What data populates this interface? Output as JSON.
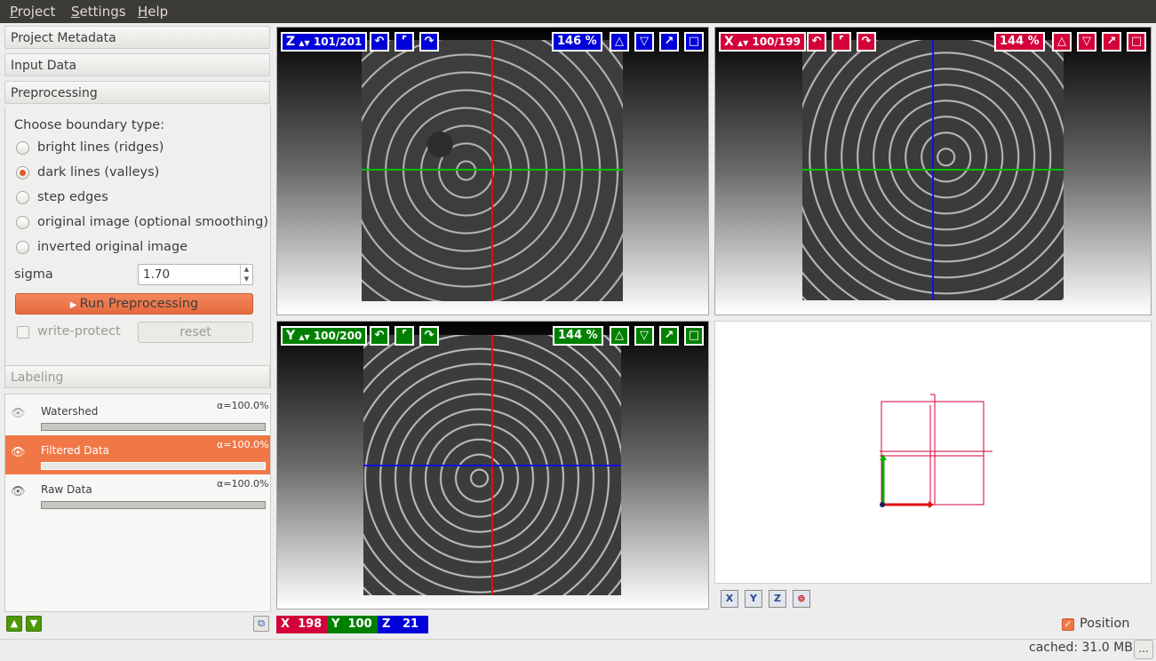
{
  "menu": {
    "items": [
      {
        "label": "Project",
        "accel": "P",
        "rest": "roject"
      },
      {
        "label": "Settings",
        "accel": "S",
        "rest": "ettings"
      },
      {
        "label": "Help",
        "accel": "H",
        "rest": "elp"
      }
    ]
  },
  "sections": {
    "project_metadata": "Project Metadata",
    "input_data": "Input Data",
    "preprocessing": "Preprocessing",
    "labeling": "Labeling"
  },
  "preprocessing": {
    "boundary_prompt": "Choose boundary type:",
    "options": [
      {
        "label": "bright lines (ridges)",
        "checked": false
      },
      {
        "label": "dark lines (valleys)",
        "checked": true
      },
      {
        "label": "step edges",
        "checked": false
      },
      {
        "label": "original image (optional smoothing)",
        "checked": false
      },
      {
        "label": "inverted original image",
        "checked": false
      }
    ],
    "sigma_label": "sigma",
    "sigma_value": "1.70",
    "run_label": "Run Preprocessing",
    "write_protect_label": "write-protect",
    "reset_label": "reset"
  },
  "layers": [
    {
      "name": "Watershed",
      "alpha": "α=100.0%",
      "selected": false
    },
    {
      "name": "Filtered Data",
      "alpha": "α=100.0%",
      "selected": true
    },
    {
      "name": "Raw Data",
      "alpha": "α=100.0%",
      "selected": false
    }
  ],
  "viewers": {
    "z": {
      "axis": "Z",
      "slice": "101/201",
      "zoom": "146 %"
    },
    "x": {
      "axis": "X",
      "slice": "100/199",
      "zoom": "144 %"
    },
    "y": {
      "axis": "Y",
      "slice": "100/200",
      "zoom": "144 %"
    }
  },
  "view3d_buttons": [
    "X",
    "Y",
    "Z"
  ],
  "position": {
    "x_label": "X",
    "x_value": "198",
    "y_label": "Y",
    "y_value": "100",
    "z_label": "Z",
    "z_value": "21"
  },
  "position_checkbox_label": "Position",
  "status": {
    "cached": "cached: 31.0 MB",
    "more": "..."
  },
  "colors": {
    "accent": "#f07746",
    "x_axis": "#d4003a",
    "y_axis": "#008000",
    "z_axis": "#0000d8"
  }
}
